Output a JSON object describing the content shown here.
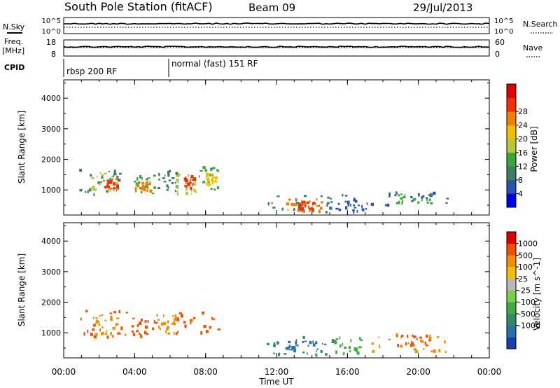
{
  "header": {
    "station": "South Pole Station (fitACF)",
    "beam": "Beam 09",
    "date": "29/Jul/2013"
  },
  "noise_panel": {
    "left_label": "N.Sky",
    "right_label": "N.Search",
    "left_ticks": [
      "10^5",
      "10^0"
    ],
    "right_ticks": [
      "10^5",
      "10^0"
    ]
  },
  "freq_panel": {
    "left_label_1": "Freq.",
    "left_label_2": "[MHz]",
    "right_label": "Nave",
    "left_ticks": [
      "18",
      "8"
    ],
    "right_ticks": [
      "60",
      "0"
    ]
  },
  "cpid": {
    "label": "CPID",
    "segments": [
      {
        "text": "rbsp 200 RF",
        "start_hour": 0
      },
      {
        "text": "normal (fast) 151 RF",
        "start_hour": 6
      }
    ]
  },
  "x_axis": {
    "label": "Time UT",
    "ticks": [
      "00:00",
      "04:00",
      "08:00",
      "12:00",
      "16:00",
      "20:00",
      "00:00"
    ]
  },
  "chart_data": [
    {
      "type": "heatmap",
      "quantity": "power",
      "ylabel": "Slant Range [km]",
      "colorbar_label": "Power [dB]",
      "yticks": [
        1000,
        2000,
        3000,
        4000
      ],
      "ylim": [
        180,
        4600
      ],
      "xlim_hours": [
        0,
        24
      ],
      "colorbar_ticks": [
        "4",
        "8",
        "12",
        "16",
        "20",
        "24",
        "28"
      ],
      "colors": [
        "#0000f0",
        "#2a50b0",
        "#3a7f60",
        "#3aa33a",
        "#b5c83a",
        "#f0c000",
        "#f08000",
        "#f03000",
        "#e00000"
      ],
      "patches": [
        {
          "t0": 0.75,
          "t1": 3.6,
          "r0": 900,
          "r1": 1700,
          "color": 2
        },
        {
          "t0": 1.5,
          "t1": 3.0,
          "r0": 1000,
          "r1": 1600,
          "color": 4
        },
        {
          "t0": 2.1,
          "t1": 3.0,
          "r0": 950,
          "r1": 1400,
          "color": 7
        },
        {
          "t0": 3.8,
          "t1": 5.2,
          "r0": 900,
          "r1": 1500,
          "color": 3
        },
        {
          "t0": 4.0,
          "t1": 4.9,
          "r0": 1000,
          "r1": 1300,
          "color": 6
        },
        {
          "t0": 5.2,
          "t1": 6.4,
          "r0": 1000,
          "r1": 1700,
          "color": 2
        },
        {
          "t0": 6.3,
          "t1": 7.5,
          "r0": 900,
          "r1": 1700,
          "color": 4
        },
        {
          "t0": 6.7,
          "t1": 7.3,
          "r0": 1100,
          "r1": 1500,
          "color": 7
        },
        {
          "t0": 7.6,
          "t1": 8.7,
          "r0": 1000,
          "r1": 1800,
          "color": 3
        },
        {
          "t0": 8.0,
          "t1": 8.6,
          "r0": 1200,
          "r1": 1600,
          "color": 5
        },
        {
          "t0": 11.4,
          "t1": 15.2,
          "r0": 280,
          "r1": 900,
          "color": 2
        },
        {
          "t0": 12.5,
          "t1": 14.6,
          "r0": 350,
          "r1": 750,
          "color": 6
        },
        {
          "t0": 13.2,
          "t1": 14.1,
          "r0": 400,
          "r1": 650,
          "color": 7
        },
        {
          "t0": 15.2,
          "t1": 16.8,
          "r0": 300,
          "r1": 900,
          "color": 1
        },
        {
          "t0": 17.0,
          "t1": 21.6,
          "r0": 400,
          "r1": 1000,
          "color": 1
        },
        {
          "t0": 18.5,
          "t1": 20.7,
          "r0": 600,
          "r1": 950,
          "color": 3
        }
      ]
    },
    {
      "type": "heatmap",
      "quantity": "velocity",
      "ylabel": "Slant Range [km]",
      "colorbar_label": "Velocity [m s^-1]",
      "yticks": [
        1000,
        2000,
        3000,
        4000
      ],
      "ylim": [
        180,
        4600
      ],
      "xlim_hours": [
        0,
        24
      ],
      "colorbar_ticks": [
        "1000",
        "500",
        "100",
        "25",
        "-25",
        "-100",
        "-500",
        "-1000"
      ],
      "colors": [
        "#1a3fb0",
        "#2a6eb0",
        "#2f8a68",
        "#44a844",
        "#76d04a",
        "#b8b8b8",
        "#f0c000",
        "#f09000",
        "#f05000",
        "#e00000"
      ],
      "patches": [
        {
          "t0": 0.75,
          "t1": 3.6,
          "r0": 900,
          "r1": 1750,
          "color": 8
        },
        {
          "t0": 1.6,
          "t1": 3.0,
          "r0": 1000,
          "r1": 1600,
          "color": 7
        },
        {
          "t0": 3.8,
          "t1": 5.2,
          "r0": 900,
          "r1": 1500,
          "color": 8
        },
        {
          "t0": 5.2,
          "t1": 6.4,
          "r0": 1000,
          "r1": 1700,
          "color": 7
        },
        {
          "t0": 6.3,
          "t1": 8.7,
          "r0": 900,
          "r1": 1800,
          "color": 8
        },
        {
          "t0": 11.4,
          "t1": 15.2,
          "r0": 280,
          "r1": 900,
          "color": 2
        },
        {
          "t0": 12.5,
          "t1": 14.6,
          "r0": 350,
          "r1": 750,
          "color": 1
        },
        {
          "t0": 15.2,
          "t1": 16.8,
          "r0": 300,
          "r1": 900,
          "color": 3
        },
        {
          "t0": 17.0,
          "t1": 21.6,
          "r0": 400,
          "r1": 1000,
          "color": 7
        },
        {
          "t0": 18.5,
          "t1": 20.7,
          "r0": 600,
          "r1": 950,
          "color": 8
        }
      ]
    }
  ]
}
